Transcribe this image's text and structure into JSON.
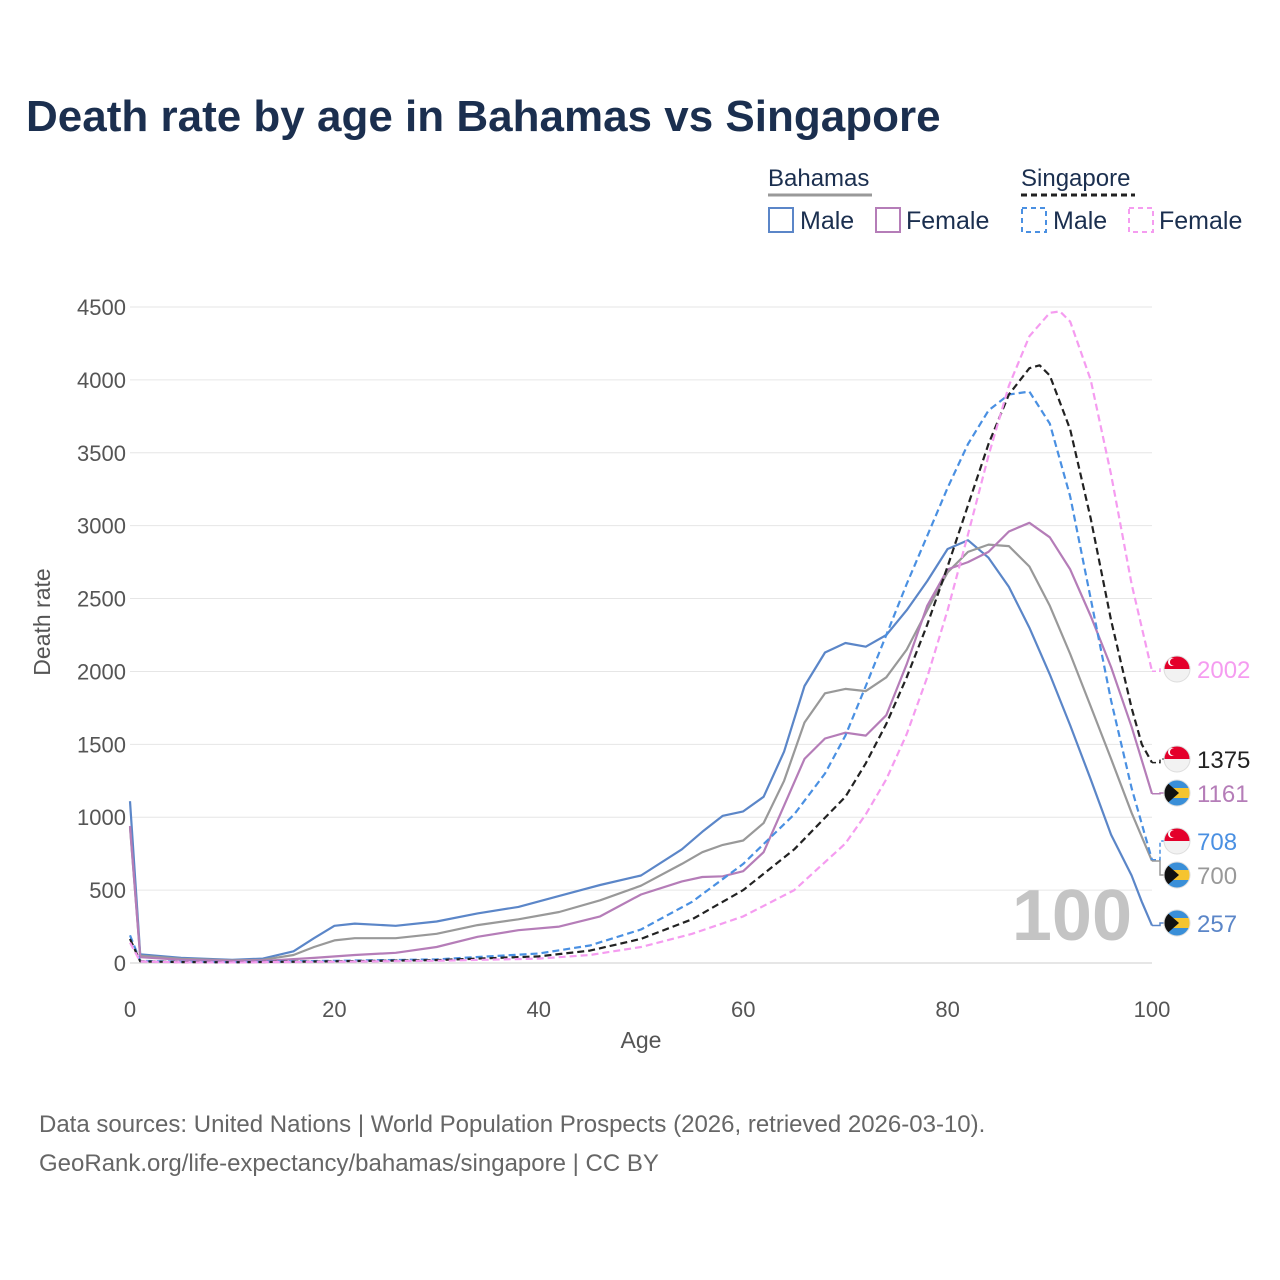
{
  "chart_data": {
    "type": "line",
    "title": "Death rate by age in Bahamas vs Singapore",
    "xlabel": "Age",
    "ylabel": "Death rate",
    "xlim": [
      0,
      100
    ],
    "ylim": [
      0,
      4500
    ],
    "x_ticks": [
      "0",
      "20",
      "40",
      "60",
      "80",
      "100"
    ],
    "y_ticks": [
      "0",
      "500",
      "1000",
      "1500",
      "2000",
      "2500",
      "3000",
      "3500",
      "4000",
      "4500"
    ],
    "x_tick_values": [
      0,
      20,
      40,
      60,
      80,
      100
    ],
    "y_tick_values": [
      0,
      500,
      1000,
      1500,
      2000,
      2500,
      3000,
      3500,
      4000,
      4500
    ],
    "grid": true,
    "current_age_label": "100",
    "legend": {
      "groups": [
        {
          "name": "Bahamas",
          "style": "solid",
          "color": "#999999"
        },
        {
          "name": "Singapore",
          "style": "dashed",
          "color": "#222222"
        }
      ],
      "items": [
        {
          "label": "Male",
          "color": "#5b86c8",
          "style": "solid"
        },
        {
          "label": "Female",
          "color": "#b57db8",
          "style": "solid"
        },
        {
          "label": "Male",
          "color": "#4a90e2",
          "style": "dashed"
        },
        {
          "label": "Female",
          "color": "#f59cf0",
          "style": "dashed"
        }
      ]
    },
    "series": [
      {
        "name": "Bahamas Male",
        "country": "Bahamas",
        "sex": "Male",
        "color": "#5b86c8",
        "dashed": false,
        "end_label": "257",
        "points": [
          [
            0,
            1110
          ],
          [
            1,
            60
          ],
          [
            5,
            35
          ],
          [
            10,
            22
          ],
          [
            13,
            30
          ],
          [
            16,
            80
          ],
          [
            18,
            170
          ],
          [
            20,
            255
          ],
          [
            22,
            270
          ],
          [
            26,
            255
          ],
          [
            30,
            285
          ],
          [
            34,
            340
          ],
          [
            38,
            385
          ],
          [
            42,
            460
          ],
          [
            46,
            535
          ],
          [
            50,
            600
          ],
          [
            54,
            780
          ],
          [
            56,
            900
          ],
          [
            58,
            1010
          ],
          [
            60,
            1040
          ],
          [
            62,
            1140
          ],
          [
            64,
            1450
          ],
          [
            66,
            1900
          ],
          [
            68,
            2130
          ],
          [
            70,
            2195
          ],
          [
            72,
            2170
          ],
          [
            74,
            2250
          ],
          [
            76,
            2420
          ],
          [
            78,
            2620
          ],
          [
            80,
            2840
          ],
          [
            82,
            2900
          ],
          [
            84,
            2780
          ],
          [
            86,
            2580
          ],
          [
            88,
            2300
          ],
          [
            90,
            1980
          ],
          [
            92,
            1630
          ],
          [
            94,
            1260
          ],
          [
            96,
            880
          ],
          [
            98,
            600
          ],
          [
            99,
            420
          ],
          [
            100,
            257
          ]
        ]
      },
      {
        "name": "Bahamas Both sexes",
        "country": "Bahamas",
        "sex": "Both",
        "color": "#999999",
        "dashed": false,
        "end_label": "700",
        "points": [
          [
            0,
            930
          ],
          [
            1,
            50
          ],
          [
            5,
            28
          ],
          [
            10,
            18
          ],
          [
            13,
            22
          ],
          [
            16,
            55
          ],
          [
            18,
            110
          ],
          [
            20,
            155
          ],
          [
            22,
            170
          ],
          [
            26,
            170
          ],
          [
            30,
            200
          ],
          [
            34,
            260
          ],
          [
            38,
            300
          ],
          [
            42,
            350
          ],
          [
            46,
            430
          ],
          [
            50,
            530
          ],
          [
            54,
            680
          ],
          [
            56,
            760
          ],
          [
            58,
            810
          ],
          [
            60,
            840
          ],
          [
            62,
            960
          ],
          [
            64,
            1250
          ],
          [
            66,
            1650
          ],
          [
            68,
            1850
          ],
          [
            70,
            1880
          ],
          [
            72,
            1865
          ],
          [
            74,
            1960
          ],
          [
            76,
            2150
          ],
          [
            78,
            2420
          ],
          [
            80,
            2680
          ],
          [
            82,
            2820
          ],
          [
            84,
            2870
          ],
          [
            86,
            2860
          ],
          [
            88,
            2720
          ],
          [
            90,
            2450
          ],
          [
            92,
            2120
          ],
          [
            94,
            1760
          ],
          [
            96,
            1400
          ],
          [
            98,
            1030
          ],
          [
            100,
            700
          ]
        ]
      },
      {
        "name": "Bahamas Female",
        "country": "Bahamas",
        "sex": "Female",
        "color": "#b57db8",
        "dashed": false,
        "end_label": "1161",
        "points": [
          [
            0,
            940
          ],
          [
            1,
            40
          ],
          [
            5,
            22
          ],
          [
            10,
            15
          ],
          [
            14,
            18
          ],
          [
            18,
            35
          ],
          [
            22,
            55
          ],
          [
            26,
            70
          ],
          [
            30,
            110
          ],
          [
            34,
            180
          ],
          [
            38,
            225
          ],
          [
            42,
            250
          ],
          [
            46,
            320
          ],
          [
            50,
            470
          ],
          [
            54,
            560
          ],
          [
            56,
            590
          ],
          [
            58,
            595
          ],
          [
            60,
            630
          ],
          [
            62,
            760
          ],
          [
            64,
            1080
          ],
          [
            66,
            1400
          ],
          [
            68,
            1540
          ],
          [
            70,
            1580
          ],
          [
            72,
            1560
          ],
          [
            74,
            1700
          ],
          [
            76,
            2050
          ],
          [
            78,
            2450
          ],
          [
            80,
            2700
          ],
          [
            82,
            2750
          ],
          [
            84,
            2820
          ],
          [
            86,
            2960
          ],
          [
            88,
            3020
          ],
          [
            90,
            2920
          ],
          [
            92,
            2700
          ],
          [
            94,
            2380
          ],
          [
            96,
            2030
          ],
          [
            98,
            1620
          ],
          [
            100,
            1161
          ]
        ]
      },
      {
        "name": "Singapore Male",
        "country": "Singapore",
        "sex": "Male",
        "color": "#4a90e2",
        "dashed": true,
        "end_label": "708",
        "points": [
          [
            0,
            190
          ],
          [
            1,
            15
          ],
          [
            5,
            8
          ],
          [
            10,
            6
          ],
          [
            20,
            15
          ],
          [
            30,
            25
          ],
          [
            40,
            65
          ],
          [
            45,
            120
          ],
          [
            50,
            230
          ],
          [
            55,
            420
          ],
          [
            60,
            680
          ],
          [
            65,
            1020
          ],
          [
            68,
            1300
          ],
          [
            70,
            1560
          ],
          [
            72,
            1900
          ],
          [
            74,
            2250
          ],
          [
            76,
            2600
          ],
          [
            78,
            2930
          ],
          [
            80,
            3260
          ],
          [
            82,
            3560
          ],
          [
            84,
            3790
          ],
          [
            86,
            3900
          ],
          [
            88,
            3920
          ],
          [
            90,
            3700
          ],
          [
            92,
            3200
          ],
          [
            94,
            2500
          ],
          [
            96,
            1800
          ],
          [
            98,
            1200
          ],
          [
            100,
            708
          ]
        ]
      },
      {
        "name": "Singapore Both sexes",
        "country": "Singapore",
        "sex": "Both",
        "color": "#222222",
        "dashed": true,
        "end_label": "1375",
        "points": [
          [
            0,
            165
          ],
          [
            1,
            12
          ],
          [
            5,
            6
          ],
          [
            10,
            5
          ],
          [
            20,
            12
          ],
          [
            30,
            20
          ],
          [
            40,
            45
          ],
          [
            45,
            85
          ],
          [
            50,
            165
          ],
          [
            55,
            300
          ],
          [
            60,
            500
          ],
          [
            65,
            780
          ],
          [
            70,
            1140
          ],
          [
            72,
            1370
          ],
          [
            74,
            1640
          ],
          [
            76,
            1960
          ],
          [
            78,
            2320
          ],
          [
            80,
            2720
          ],
          [
            82,
            3140
          ],
          [
            84,
            3560
          ],
          [
            86,
            3900
          ],
          [
            88,
            4080
          ],
          [
            89,
            4100
          ],
          [
            90,
            4030
          ],
          [
            92,
            3660
          ],
          [
            94,
            3050
          ],
          [
            96,
            2350
          ],
          [
            98,
            1750
          ],
          [
            99,
            1500
          ],
          [
            100,
            1375
          ]
        ]
      },
      {
        "name": "Singapore Female",
        "country": "Singapore",
        "sex": "Female",
        "color": "#f59cf0",
        "dashed": true,
        "end_label": "2002",
        "points": [
          [
            0,
            140
          ],
          [
            1,
            10
          ],
          [
            5,
            5
          ],
          [
            10,
            4
          ],
          [
            20,
            9
          ],
          [
            30,
            15
          ],
          [
            40,
            30
          ],
          [
            45,
            55
          ],
          [
            50,
            110
          ],
          [
            55,
            200
          ],
          [
            60,
            320
          ],
          [
            65,
            500
          ],
          [
            70,
            820
          ],
          [
            72,
            1020
          ],
          [
            74,
            1260
          ],
          [
            76,
            1570
          ],
          [
            78,
            1960
          ],
          [
            80,
            2420
          ],
          [
            82,
            2940
          ],
          [
            84,
            3480
          ],
          [
            86,
            3960
          ],
          [
            88,
            4300
          ],
          [
            90,
            4460
          ],
          [
            91,
            4470
          ],
          [
            92,
            4400
          ],
          [
            94,
            4000
          ],
          [
            96,
            3350
          ],
          [
            98,
            2600
          ],
          [
            100,
            2002
          ]
        ]
      }
    ]
  },
  "footer": {
    "line1": "Data sources: United Nations | World Population Prospects (2026, retrieved 2026-03-10).",
    "line2": "GeoRank.org/life-expectancy/bahamas/singapore | CC BY"
  }
}
